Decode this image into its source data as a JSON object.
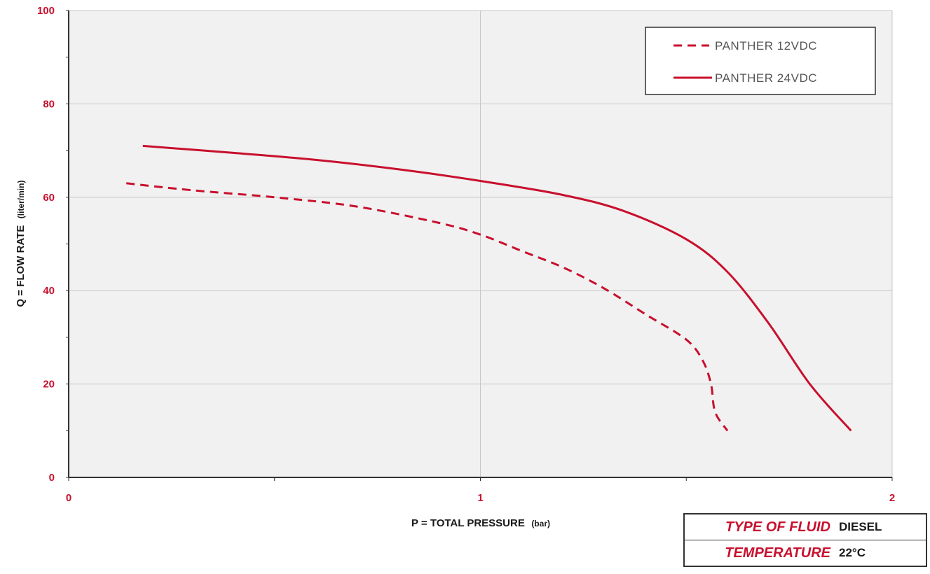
{
  "chart_data": {
    "type": "line",
    "title": "",
    "xlabel": "P = TOTAL PRESSURE",
    "xlabel_unit": "(bar)",
    "ylabel": "Q = FLOW RATE",
    "ylabel_unit": "(liter/min)",
    "xlim": [
      0,
      2
    ],
    "ylim": [
      0,
      100
    ],
    "x_ticks": [
      "0",
      "1",
      "2"
    ],
    "y_ticks": [
      "0",
      "20",
      "40",
      "60",
      "80",
      "100"
    ],
    "grid": true,
    "legend_position": "top-right",
    "series": [
      {
        "name": "PANTHER 12VDC",
        "style": "dashed",
        "color": "#c8102e",
        "points": [
          [
            0.14,
            63
          ],
          [
            0.3,
            61.5
          ],
          [
            0.5,
            60
          ],
          [
            0.7,
            58
          ],
          [
            0.9,
            54.5
          ],
          [
            1.0,
            52
          ],
          [
            1.1,
            48.5
          ],
          [
            1.2,
            45
          ],
          [
            1.3,
            40.5
          ],
          [
            1.4,
            35
          ],
          [
            1.5,
            29.5
          ],
          [
            1.54,
            25
          ],
          [
            1.56,
            20
          ],
          [
            1.57,
            14
          ],
          [
            1.6,
            10
          ]
        ]
      },
      {
        "name": "PANTHER 24VDC",
        "style": "solid",
        "color": "#c8102e",
        "points": [
          [
            0.18,
            71
          ],
          [
            0.4,
            69.5
          ],
          [
            0.6,
            68
          ],
          [
            0.8,
            66
          ],
          [
            1.0,
            63.5
          ],
          [
            1.2,
            60.5
          ],
          [
            1.35,
            57
          ],
          [
            1.5,
            51
          ],
          [
            1.6,
            44
          ],
          [
            1.7,
            33
          ],
          [
            1.8,
            20
          ],
          [
            1.9,
            10
          ]
        ]
      }
    ]
  },
  "info": {
    "fluid_label": "TYPE OF FLUID",
    "fluid_value": "DIESEL",
    "temp_label": "TEMPERATURE",
    "temp_value": "22°C"
  },
  "colors": {
    "accent": "#c8102e",
    "plot_background": "#f1f1f1",
    "grid": "#c8c8c8"
  }
}
